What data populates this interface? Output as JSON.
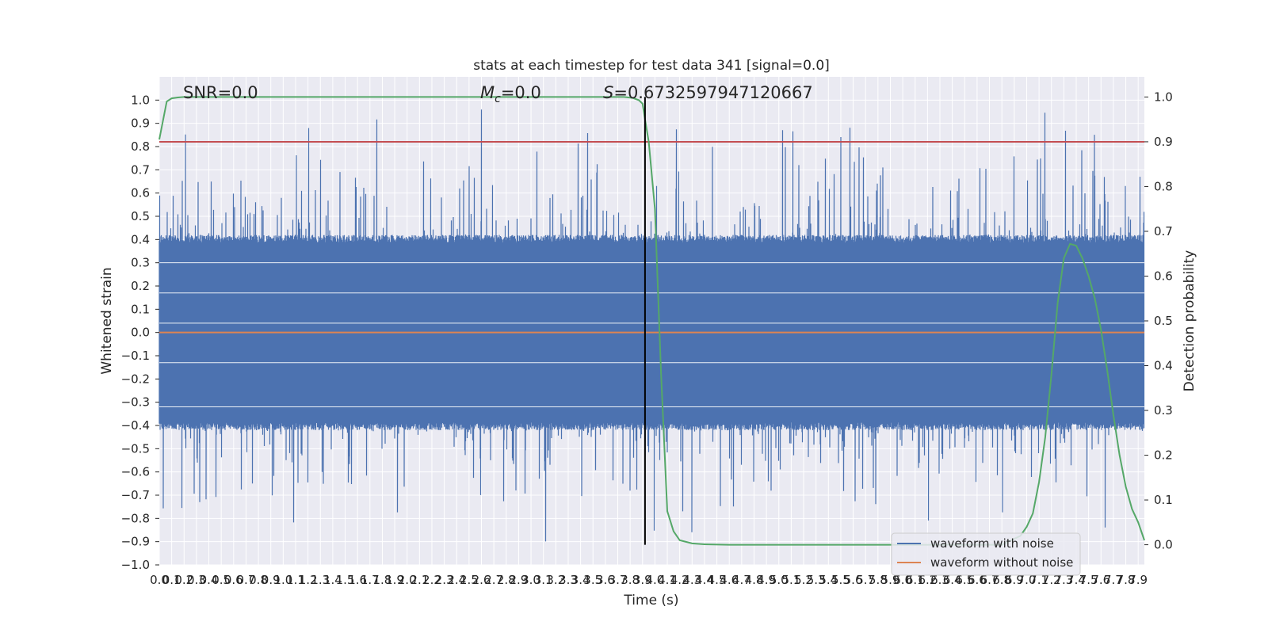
{
  "chart_data": {
    "type": "line",
    "title": "stats at each timestep for test data 341 [signal=0.0]",
    "xlabel": "Time (s)",
    "ylabel": "Whitened strain",
    "ylabel_right": "Detection probability",
    "xlim": [
      0.0,
      7.95
    ],
    "ylim": [
      -1.0,
      1.1
    ],
    "ylim_right": [
      -0.045,
      1.045
    ],
    "x_tick_step": 0.1,
    "y_tick_step": 0.1,
    "y_right_tick_step": 0.1,
    "grid": true,
    "legend_position": "lower-right",
    "annotations": {
      "snr": "SNR=0.0",
      "mc_symbol": "M",
      "mc_subscript": "c",
      "mc_value": "=0.0",
      "s_symbol": "S",
      "s_value": "=0.6732597947120667"
    },
    "colors": {
      "noise": "#4c72b0",
      "clean": "#dd8452",
      "prob": "#55a868",
      "threshold": "#c44e52",
      "marker": "#000000",
      "plot_bg": "#eaeaf2",
      "grid": "#ffffff"
    },
    "series": [
      {
        "name": "waveform with noise",
        "kind": "noise",
        "amplitude": 0.42,
        "spike_max": 1.0,
        "spike_min": -0.91,
        "samples": 8192
      },
      {
        "name": "waveform without noise",
        "kind": "constant",
        "value": 0.0
      },
      {
        "kind": "probability",
        "axis": "right",
        "x": [
          0.0,
          0.06,
          0.1,
          0.15,
          0.2,
          0.5,
          1.0,
          2.0,
          3.0,
          3.5,
          3.75,
          3.82,
          3.87,
          3.9,
          3.92,
          3.95,
          4.0,
          4.05,
          4.1,
          4.15,
          4.2,
          4.3,
          4.4,
          4.6,
          5.0,
          6.0,
          6.8,
          6.95,
          7.0,
          7.05,
          7.1,
          7.15,
          7.2,
          7.25,
          7.3,
          7.35,
          7.4,
          7.45,
          7.5,
          7.55,
          7.6,
          7.65,
          7.7,
          7.75,
          7.8,
          7.85,
          7.9,
          7.95
        ],
        "y": [
          0.905,
          0.99,
          0.997,
          0.999,
          1.0,
          1.0,
          1.0,
          1.0,
          1.0,
          1.0,
          1.0,
          0.998,
          0.993,
          0.985,
          0.95,
          0.9,
          0.75,
          0.38,
          0.075,
          0.03,
          0.01,
          0.003,
          0.001,
          0.0,
          0.0,
          0.0,
          0.0,
          0.02,
          0.04,
          0.07,
          0.14,
          0.24,
          0.38,
          0.54,
          0.64,
          0.672,
          0.668,
          0.64,
          0.6,
          0.55,
          0.48,
          0.39,
          0.29,
          0.2,
          0.13,
          0.08,
          0.05,
          0.01
        ]
      },
      {
        "kind": "threshold",
        "axis": "right",
        "value": 0.9
      },
      {
        "kind": "marker",
        "axis": "right",
        "x": 3.92,
        "y_from": 0.0,
        "y_to": 1.0
      }
    ]
  }
}
